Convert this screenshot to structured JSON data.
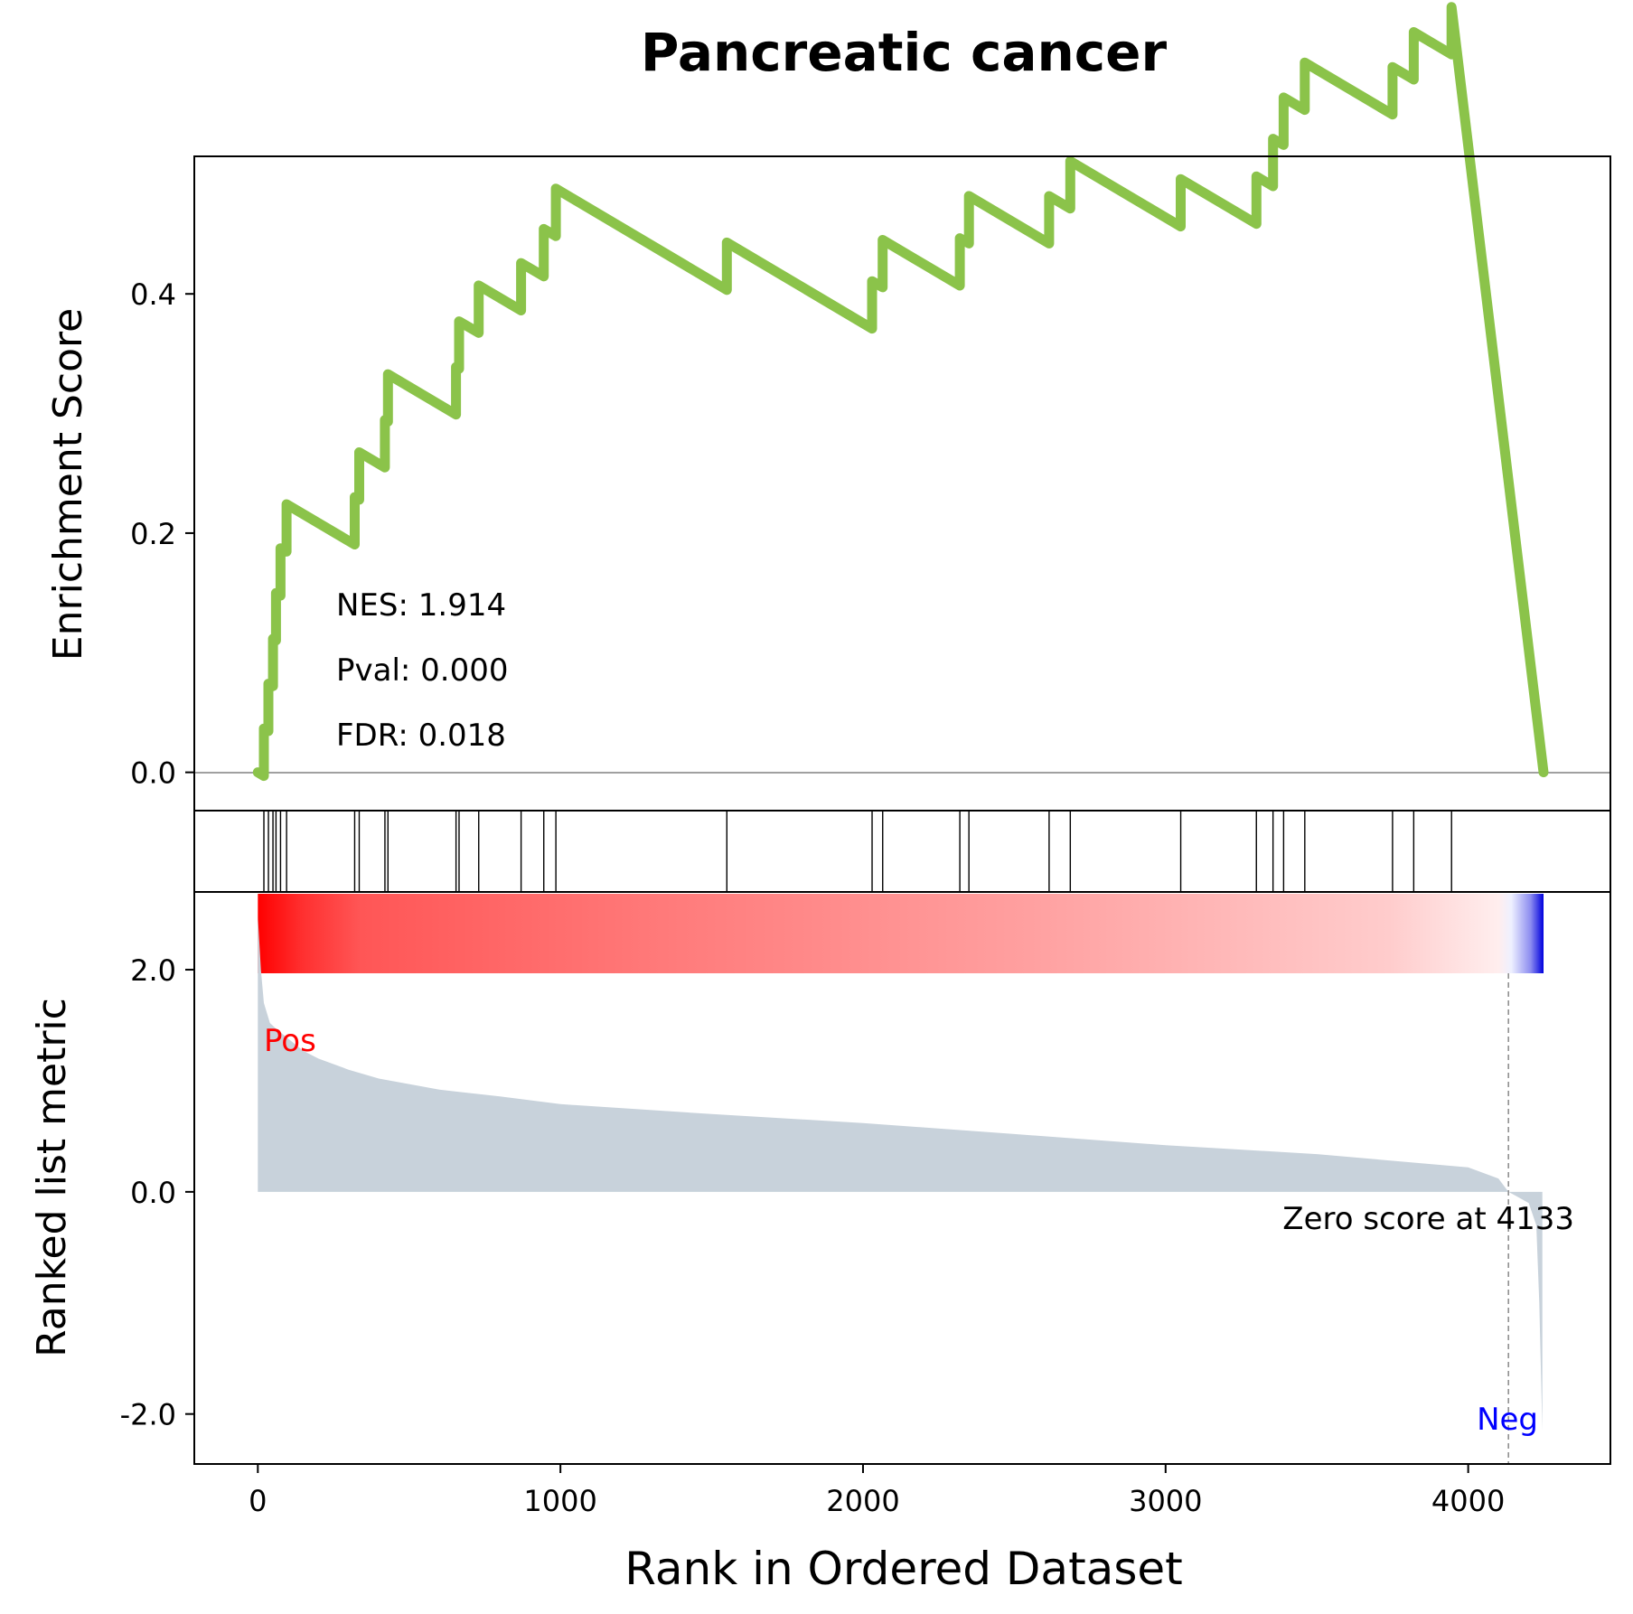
{
  "chart_data": {
    "type": "line",
    "title": "Pancreatic cancer",
    "xlabel": "Rank in Ordered Dataset",
    "xlim": [
      -210,
      4470
    ],
    "x_ticks": [
      0,
      1000,
      2000,
      3000,
      4000
    ],
    "x_tick_labels": [
      "0",
      "1000",
      "2000",
      "3000",
      "4000"
    ],
    "enrichment": {
      "ylabel": "Enrichment Score",
      "ylim": [
        -0.032,
        0.515
      ],
      "y_ticks": [
        0.0,
        0.2,
        0.4
      ],
      "y_tick_labels": [
        "0.0",
        "0.2",
        "0.4"
      ],
      "line_color": "#8bc34a",
      "hits": [
        20,
        35,
        50,
        60,
        75,
        95,
        320,
        335,
        420,
        430,
        655,
        665,
        730,
        870,
        945,
        985,
        1550,
        2030,
        2065,
        2320,
        2350,
        2615,
        2685,
        3050,
        3300,
        3355,
        3390,
        3460,
        3750,
        3820,
        3945
      ],
      "peak_rank": 985,
      "peak_es": 0.488,
      "n_genes": 4250,
      "annotations": {
        "nes": "NES: 1.914",
        "pval": "Pval: 0.000",
        "fdr": "FDR: 0.018"
      }
    },
    "ranked_metric": {
      "ylabel": "Ranked list metric",
      "ylim": [
        -2.45,
        2.7
      ],
      "y_ticks": [
        2.0,
        0.0,
        -2.0
      ],
      "y_tick_labels": [
        "2.0",
        "0.0",
        "-2.0"
      ],
      "fill_color": "#c8d2db",
      "points": [
        [
          0,
          2.48
        ],
        [
          10,
          2.0
        ],
        [
          20,
          1.7
        ],
        [
          40,
          1.52
        ],
        [
          60,
          1.47
        ],
        [
          100,
          1.38
        ],
        [
          150,
          1.27
        ],
        [
          200,
          1.2
        ],
        [
          300,
          1.1
        ],
        [
          400,
          1.02
        ],
        [
          600,
          0.92
        ],
        [
          800,
          0.86
        ],
        [
          1000,
          0.79
        ],
        [
          1500,
          0.7
        ],
        [
          2000,
          0.62
        ],
        [
          2500,
          0.52
        ],
        [
          3000,
          0.42
        ],
        [
          3500,
          0.34
        ],
        [
          4000,
          0.22
        ],
        [
          4100,
          0.12
        ],
        [
          4133,
          0.0
        ],
        [
          4160,
          -0.04
        ],
        [
          4200,
          -0.1
        ],
        [
          4225,
          -0.3
        ],
        [
          4235,
          -1.0
        ],
        [
          4245,
          -2.15
        ]
      ],
      "zero_cross": 4133,
      "zero_label": "Zero score at 4133",
      "pos_label": "Pos",
      "neg_label": "Neg",
      "pos_color": "#ff0000",
      "neg_color": "#0000ff"
    }
  }
}
